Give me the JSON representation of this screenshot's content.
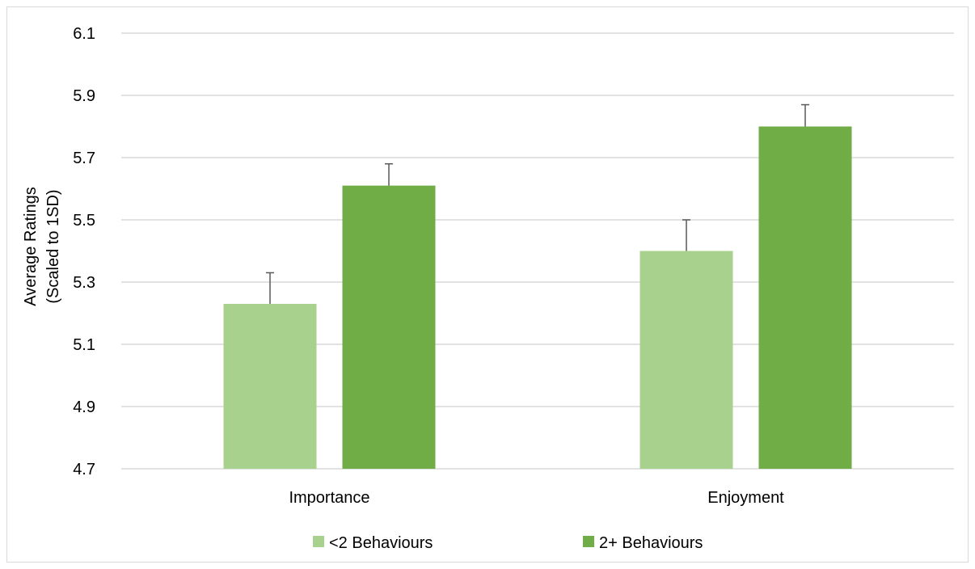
{
  "chart_data": {
    "type": "bar",
    "title": "",
    "xlabel": "",
    "ylabel_lines": [
      "Average Ratings",
      "(Scaled to 1SD)"
    ],
    "categories": [
      "Importance",
      "Enjoyment"
    ],
    "series": [
      {
        "name": "<2 Behaviours",
        "values": [
          5.23,
          5.4
        ],
        "error_plus": [
          0.1,
          0.1
        ],
        "color": "#a9d18e"
      },
      {
        "name": "2+ Behaviours",
        "values": [
          5.61,
          5.8
        ],
        "error_plus": [
          0.07,
          0.07
        ],
        "color": "#70ad47"
      }
    ],
    "ylim": [
      4.7,
      6.1
    ],
    "yticks": [
      "4.7",
      "4.9",
      "5.1",
      "5.3",
      "5.5",
      "5.7",
      "5.9",
      "6.1"
    ],
    "grid": true,
    "gridline_color": "#d9d9d9",
    "error_bar_color": "#595959",
    "legend_position": "bottom"
  }
}
